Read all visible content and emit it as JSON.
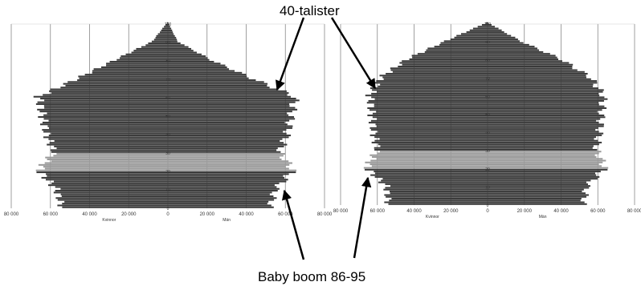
{
  "annotations": {
    "top_label": "40-talister",
    "bottom_label": "Baby boom 86-95"
  },
  "colors": {
    "bar_fill": "#3a3a3a",
    "bar_fill_light": "#9a9a9a",
    "grid": "#888888",
    "arrow": "#000000"
  },
  "chart_data": [
    {
      "type": "bar",
      "orientation": "horizontal",
      "style": "population-pyramid",
      "x_ticks": [
        "80 000",
        "60 000",
        "40 000",
        "20 000",
        "0",
        "20 000",
        "40 000",
        "60 000",
        "80 000"
      ],
      "xlim": [
        -80000,
        80000
      ],
      "x_labels": [
        "Kvinnor",
        "Män"
      ],
      "grid": true,
      "age_groups": [
        0,
        10,
        20,
        30,
        40,
        50,
        60,
        70,
        80,
        90,
        100
      ],
      "age_labels": [
        "0",
        "10",
        "20",
        "30",
        "40",
        "50",
        "60",
        "70",
        "80",
        "90",
        "100"
      ],
      "series": [
        {
          "values": [
            54000,
            57000,
            66000,
            58000,
            62000,
            64000,
            66000,
            46000,
            27000,
            8000,
            500
          ]
        },
        {
          "values": [
            52000,
            55000,
            64000,
            57000,
            61000,
            63000,
            65000,
            43000,
            22000,
            5000,
            200
          ]
        }
      ]
    },
    {
      "type": "bar",
      "orientation": "horizontal",
      "style": "population-pyramid",
      "x_ticks": [
        "80 000",
        "60 000",
        "40 000",
        "20 000",
        "0",
        "20 000",
        "40 000",
        "60 000",
        "80 000"
      ],
      "xlim": [
        -80000,
        80000
      ],
      "x_labels": [
        "Kvinnor",
        "Män"
      ],
      "grid": true,
      "age_groups": [
        0,
        10,
        20,
        30,
        40,
        50,
        60,
        70,
        80,
        90,
        100
      ],
      "age_labels": [
        "0",
        "10",
        "20",
        "30",
        "40",
        "50",
        "60",
        "70",
        "80",
        "90",
        "100"
      ],
      "series": [
        {
          "values": [
            54000,
            55000,
            66000,
            60000,
            62000,
            63000,
            64000,
            58000,
            44000,
            23000,
            1000
          ]
        },
        {
          "values": [
            52000,
            54000,
            64000,
            59000,
            61000,
            62000,
            63000,
            56000,
            40000,
            18000,
            500
          ]
        }
      ]
    }
  ]
}
